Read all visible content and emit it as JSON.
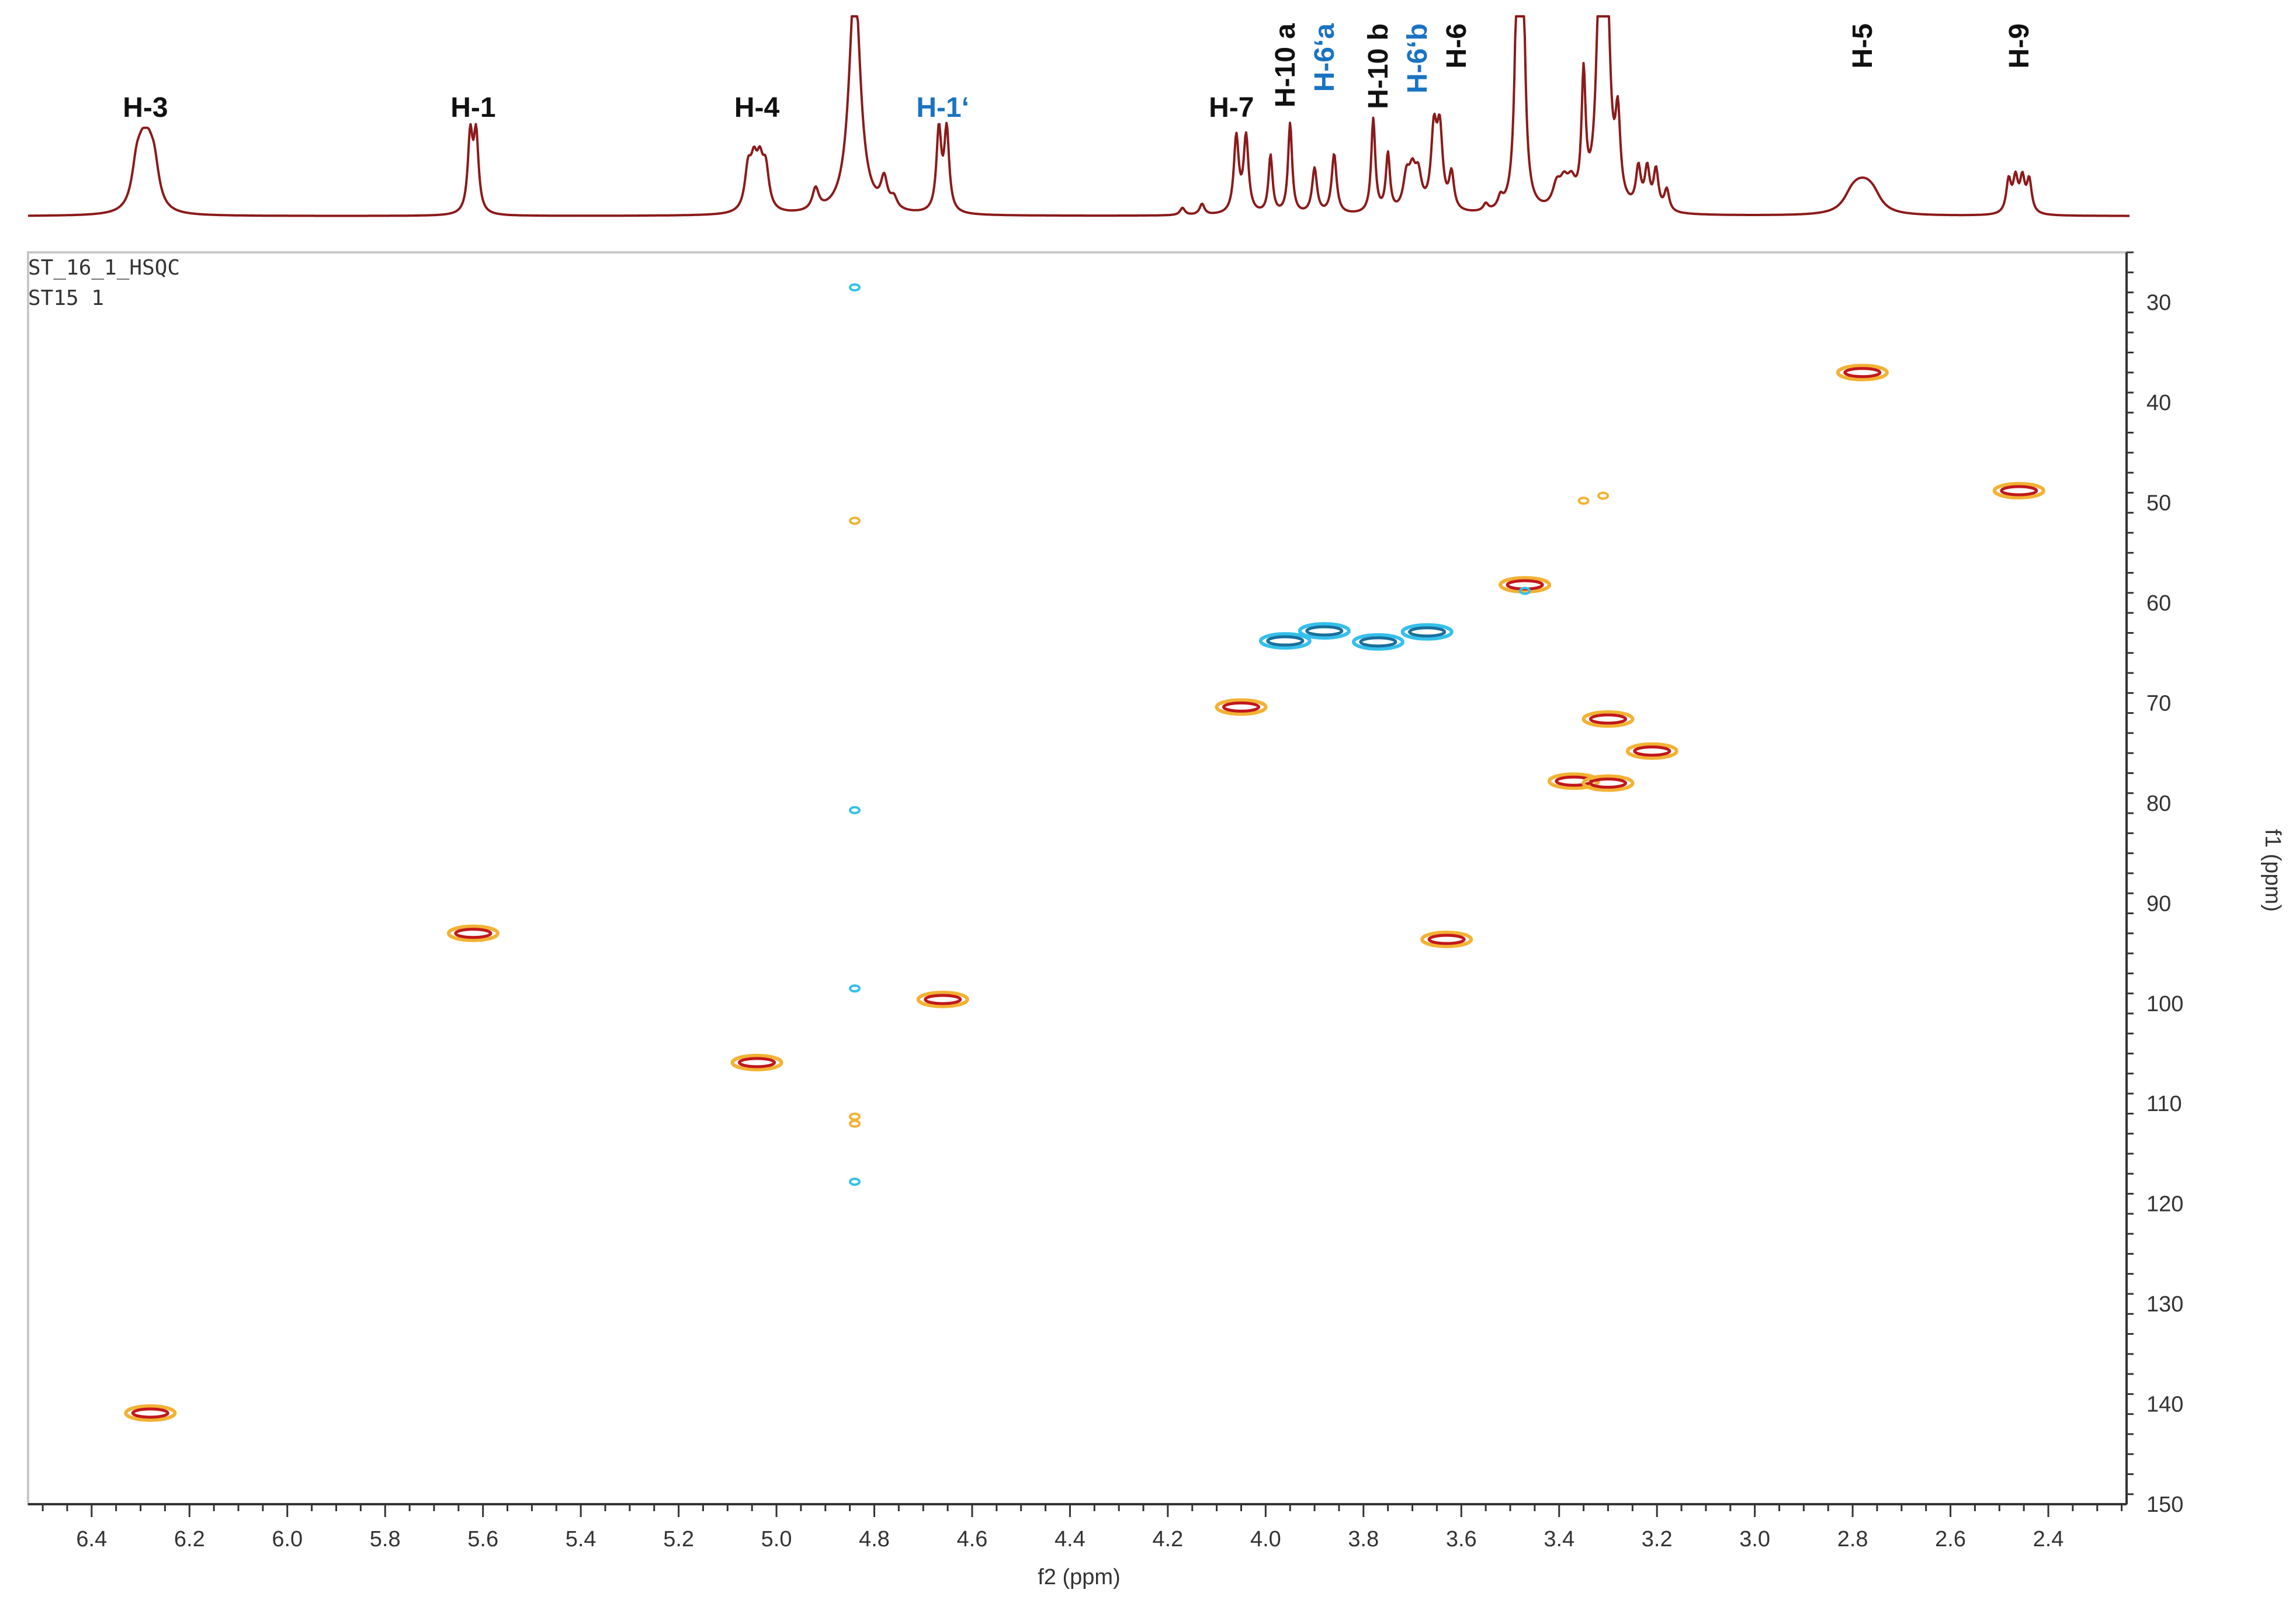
{
  "datasets": [
    "ST_16_1_HSQC",
    "ST15 1"
  ],
  "colors": {
    "spectrum": "#8b1a1a",
    "positive_outer": "#f2b233",
    "positive_inner": "#c0181c",
    "negative_outer": "#34c0ea",
    "negative_inner": "#1a6f9a",
    "label_black": "#111111",
    "label_blue": "#1a73c2",
    "frame": "#c8c8c8"
  },
  "chart_data": {
    "type": "scatter",
    "title": "",
    "xlabel": "f2 (ppm)",
    "ylabel": "f1 (ppm)",
    "xlim": [
      6.53,
      2.24
    ],
    "ylim": [
      25,
      150
    ],
    "x_ticks": [
      6.4,
      6.2,
      6.0,
      5.8,
      5.6,
      5.4,
      5.2,
      5.0,
      4.8,
      4.6,
      4.4,
      4.2,
      4.0,
      3.8,
      3.6,
      3.4,
      3.2,
      3.0,
      2.8,
      2.6,
      2.4
    ],
    "x_tick_labels": [
      "6.4",
      "6.2",
      "6.0",
      "5.8",
      "5.6",
      "5.4",
      "5.2",
      "5.0",
      "4.8",
      "4.6",
      "4.4",
      "4.2",
      "4.0",
      "3.8",
      "3.6",
      "3.4",
      "3.2",
      "3.0",
      "2.8",
      "2.6",
      "2.4"
    ],
    "y_ticks": [
      30,
      40,
      50,
      60,
      70,
      80,
      90,
      100,
      110,
      120,
      130,
      140,
      150
    ],
    "y_tick_labels": [
      "30",
      "40",
      "50",
      "60",
      "70",
      "80",
      "90",
      "100",
      "110",
      "120",
      "130",
      "140",
      "150"
    ],
    "grid": false,
    "series": [
      {
        "phase": "positive",
        "points": [
          {
            "x": 2.78,
            "y": 37.0
          },
          {
            "x": 2.46,
            "y": 48.8
          },
          {
            "x": 3.47,
            "y": 58.2
          },
          {
            "x": 4.05,
            "y": 70.4
          },
          {
            "x": 3.3,
            "y": 71.6
          },
          {
            "x": 3.21,
            "y": 74.8
          },
          {
            "x": 3.37,
            "y": 77.8
          },
          {
            "x": 3.3,
            "y": 78.0
          },
          {
            "x": 5.62,
            "y": 93.0
          },
          {
            "x": 3.63,
            "y": 93.6
          },
          {
            "x": 4.66,
            "y": 99.6
          },
          {
            "x": 5.04,
            "y": 105.9
          },
          {
            "x": 6.28,
            "y": 140.9
          }
        ],
        "weak_points": [
          {
            "x": 3.31,
            "y": 49.3
          },
          {
            "x": 3.35,
            "y": 49.8
          },
          {
            "x": 4.84,
            "y": 51.8
          },
          {
            "x": 4.84,
            "y": 111.3
          },
          {
            "x": 4.84,
            "y": 112.0
          }
        ]
      },
      {
        "phase": "negative",
        "points": [
          {
            "x": 3.96,
            "y": 63.8
          },
          {
            "x": 3.88,
            "y": 62.8
          },
          {
            "x": 3.77,
            "y": 63.9
          },
          {
            "x": 3.67,
            "y": 62.9
          }
        ],
        "weak_points": [
          {
            "x": 4.84,
            "y": 28.5
          },
          {
            "x": 4.84,
            "y": 80.7
          },
          {
            "x": 4.84,
            "y": 98.5
          },
          {
            "x": 4.84,
            "y": 117.8
          },
          {
            "x": 3.47,
            "y": 58.8
          }
        ]
      }
    ],
    "proton_spectrum": {
      "peaks": [
        {
          "x": 6.29,
          "h": 0.22,
          "w": 0.012,
          "n": 4,
          "j": 0.012
        },
        {
          "x": 5.62,
          "h": 0.42,
          "w": 0.006,
          "n": 2,
          "j": 0.012
        },
        {
          "x": 5.04,
          "h": 0.22,
          "w": 0.008,
          "n": 4,
          "j": 0.012
        },
        {
          "x": 4.92,
          "h": 0.12,
          "w": 0.008,
          "n": 1,
          "j": 0
        },
        {
          "x": 4.84,
          "h": 1.3,
          "w": 0.014,
          "n": 1,
          "j": 0
        },
        {
          "x": 4.78,
          "h": 0.16,
          "w": 0.008,
          "n": 1,
          "j": 0
        },
        {
          "x": 4.76,
          "h": 0.06,
          "w": 0.008,
          "n": 1,
          "j": 0
        },
        {
          "x": 4.66,
          "h": 0.45,
          "w": 0.006,
          "n": 2,
          "j": 0.016
        },
        {
          "x": 4.17,
          "h": 0.04,
          "w": 0.006,
          "n": 1,
          "j": 0
        },
        {
          "x": 4.13,
          "h": 0.06,
          "w": 0.006,
          "n": 1,
          "j": 0
        },
        {
          "x": 4.05,
          "h": 0.42,
          "w": 0.006,
          "n": 2,
          "j": 0.02
        },
        {
          "x": 3.99,
          "h": 0.32,
          "w": 0.005,
          "n": 1,
          "j": 0
        },
        {
          "x": 3.95,
          "h": 0.5,
          "w": 0.005,
          "n": 1,
          "j": 0
        },
        {
          "x": 3.9,
          "h": 0.25,
          "w": 0.006,
          "n": 1,
          "j": 0
        },
        {
          "x": 3.86,
          "h": 0.33,
          "w": 0.006,
          "n": 1,
          "j": 0
        },
        {
          "x": 3.78,
          "h": 0.52,
          "w": 0.005,
          "n": 1,
          "j": 0
        },
        {
          "x": 3.75,
          "h": 0.32,
          "w": 0.005,
          "n": 1,
          "j": 0
        },
        {
          "x": 3.7,
          "h": 0.18,
          "w": 0.008,
          "n": 3,
          "j": 0.012
        },
        {
          "x": 3.65,
          "h": 0.42,
          "w": 0.007,
          "n": 2,
          "j": 0.012
        },
        {
          "x": 3.62,
          "h": 0.2,
          "w": 0.006,
          "n": 1,
          "j": 0
        },
        {
          "x": 3.55,
          "h": 0.04,
          "w": 0.006,
          "n": 1,
          "j": 0
        },
        {
          "x": 3.52,
          "h": 0.06,
          "w": 0.006,
          "n": 1,
          "j": 0
        },
        {
          "x": 3.48,
          "h": 1.3,
          "w": 0.006,
          "n": 2,
          "j": 0.01
        },
        {
          "x": 3.39,
          "h": 0.12,
          "w": 0.01,
          "n": 3,
          "j": 0.015
        },
        {
          "x": 3.35,
          "h": 0.7,
          "w": 0.005,
          "n": 1,
          "j": 0
        },
        {
          "x": 3.31,
          "h": 1.3,
          "w": 0.008,
          "n": 2,
          "j": 0.012
        },
        {
          "x": 3.28,
          "h": 0.45,
          "w": 0.006,
          "n": 1,
          "j": 0
        },
        {
          "x": 3.22,
          "h": 0.22,
          "w": 0.006,
          "n": 3,
          "j": 0.018
        },
        {
          "x": 3.18,
          "h": 0.12,
          "w": 0.006,
          "n": 1,
          "j": 0
        },
        {
          "x": 2.78,
          "h": 0.08,
          "w": 0.02,
          "n": 4,
          "j": 0.015
        },
        {
          "x": 2.46,
          "h": 0.18,
          "w": 0.006,
          "n": 4,
          "j": 0.014
        }
      ]
    },
    "peak_labels": [
      {
        "text": "H-3",
        "x": 6.29,
        "color": "black",
        "rotated": false
      },
      {
        "text": "H-1",
        "x": 5.62,
        "color": "black",
        "rotated": false
      },
      {
        "text": "H-4",
        "x": 5.04,
        "color": "black",
        "rotated": false
      },
      {
        "text": "H-1‘",
        "x": 4.66,
        "color": "blue",
        "rotated": false
      },
      {
        "text": "H-7",
        "x": 4.07,
        "color": "black",
        "rotated": false
      },
      {
        "text": "H-10 a",
        "x": 3.96,
        "color": "black",
        "rotated": true
      },
      {
        "text": "H-6‘a",
        "x": 3.88,
        "color": "blue",
        "rotated": true
      },
      {
        "text": "H-10 b",
        "x": 3.77,
        "color": "black",
        "rotated": true
      },
      {
        "text": "H-6‘b",
        "x": 3.69,
        "color": "blue",
        "rotated": true
      },
      {
        "text": "H-6",
        "x": 3.61,
        "color": "black",
        "rotated": true
      },
      {
        "text": "H-5",
        "x": 2.78,
        "color": "black",
        "rotated": true
      },
      {
        "text": "H-9",
        "x": 2.46,
        "color": "black",
        "rotated": true
      }
    ]
  }
}
